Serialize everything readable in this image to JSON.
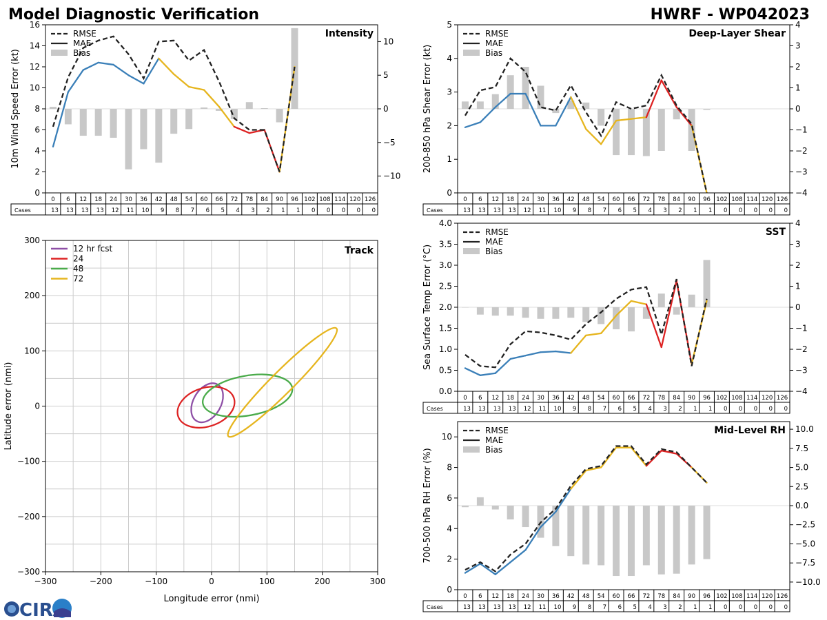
{
  "header": {
    "title_left": "Model Diagnostic Verification",
    "title_right": "HWRF - WP042023"
  },
  "logo": {
    "text": "CIRA"
  },
  "hours": [
    "0",
    "6",
    "12",
    "18",
    "24",
    "30",
    "36",
    "42",
    "48",
    "54",
    "60",
    "66",
    "72",
    "78",
    "84",
    "90",
    "96",
    "102",
    "108",
    "114",
    "120",
    "126"
  ],
  "cases": [
    "13",
    "13",
    "13",
    "13",
    "12",
    "11",
    "10",
    "9",
    "8",
    "7",
    "6",
    "5",
    "4",
    "3",
    "2",
    "1",
    "1",
    "0",
    "0",
    "0",
    "0",
    "0"
  ],
  "cases_label": "Cases",
  "legend_stats": [
    "RMSE",
    "MAE",
    "Bias"
  ],
  "colors": {
    "blue": "#3a7fb8",
    "yellow": "#e6b51e",
    "red": "#dd2222",
    "rmse": "#222222",
    "bias": "#c8c8c8",
    "grid": "#cccccc",
    "purple": "#8e4fa6",
    "green": "#4aab4a"
  },
  "chart_data": [
    {
      "id": "intensity",
      "type": "line",
      "title": "Intensity",
      "ylabel": "10m Wind Speed Error (kt)",
      "ylim": [
        0,
        16
      ],
      "yticks": [
        "0",
        "2",
        "4",
        "6",
        "8",
        "10",
        "12",
        "14",
        "16"
      ],
      "y2lim": [
        -12.5,
        12.5
      ],
      "y2ticks": [
        "−10",
        "−5",
        "0",
        "5",
        "10"
      ],
      "rmse": [
        6.3,
        11.0,
        13.8,
        14.5,
        14.9,
        13.2,
        10.9,
        14.4,
        14.5,
        12.6,
        13.6,
        10.6,
        7.1,
        6.0,
        6.0,
        2.0,
        12.0
      ],
      "mae": [
        4.4,
        9.6,
        11.7,
        12.4,
        12.2,
        11.2,
        10.4,
        12.8,
        11.3,
        10.1,
        9.8,
        8.2,
        6.3,
        5.7,
        6.0,
        2.0,
        12.0
      ],
      "bias": [
        0.3,
        -2.3,
        -4.0,
        -4.0,
        -4.3,
        -9.0,
        -6.0,
        -8.0,
        -3.7,
        -3.0,
        0.2,
        -0.3,
        -1.5,
        1.0,
        0.1,
        -2.0,
        12.0
      ]
    },
    {
      "id": "shear",
      "type": "line",
      "title": "Deep-Layer Shear",
      "ylabel": "200-850 hPa Shear Error (kt)",
      "ylim": [
        0,
        5
      ],
      "yticks": [
        "0",
        "1",
        "2",
        "3",
        "4",
        "5"
      ],
      "y2lim": [
        -4,
        4
      ],
      "y2ticks": [
        "−4",
        "−3",
        "−2",
        "−1",
        "0",
        "1",
        "2",
        "3",
        "4"
      ],
      "rmse": [
        2.3,
        3.05,
        3.15,
        4.0,
        3.6,
        2.55,
        2.45,
        3.2,
        2.4,
        1.7,
        2.7,
        2.5,
        2.6,
        3.5,
        2.6,
        2.05,
        0.0
      ],
      "mae": [
        1.95,
        2.1,
        2.55,
        2.95,
        2.95,
        2.0,
        2.0,
        2.85,
        1.9,
        1.45,
        2.15,
        2.2,
        2.25,
        3.35,
        2.55,
        2.0,
        0.0
      ],
      "bias": [
        0.35,
        0.35,
        0.7,
        1.6,
        2.0,
        1.1,
        -0.2,
        0.4,
        0.3,
        -0.8,
        -2.2,
        -2.2,
        -2.25,
        -2.0,
        -0.5,
        -2.0,
        -0.05
      ]
    },
    {
      "id": "sst",
      "type": "line",
      "title": "SST",
      "ylabel": "Sea Surface Temp Error (°C)",
      "ylim": [
        0,
        4
      ],
      "yticks": [
        "0.0",
        "0.5",
        "1.0",
        "1.5",
        "2.0",
        "2.5",
        "3.0",
        "3.5",
        "4.0"
      ],
      "y2lim": [
        -4,
        4
      ],
      "y2ticks": [
        "−4",
        "−3",
        "−2",
        "−1",
        "0",
        "1",
        "2",
        "3",
        "4"
      ],
      "rmse": [
        0.87,
        0.6,
        0.57,
        1.12,
        1.43,
        1.4,
        1.33,
        1.23,
        1.6,
        1.88,
        2.2,
        2.42,
        2.48,
        1.35,
        2.67,
        0.6,
        2.2
      ],
      "mae": [
        0.55,
        0.38,
        0.43,
        0.77,
        0.85,
        0.93,
        0.95,
        0.91,
        1.33,
        1.38,
        1.8,
        2.15,
        2.07,
        1.05,
        2.63,
        0.65,
        2.15
      ],
      "bias": [
        0.0,
        -0.35,
        -0.4,
        -0.4,
        -0.5,
        -0.55,
        -0.55,
        -0.5,
        -0.7,
        -0.8,
        -1.05,
        -1.15,
        -0.55,
        0.65,
        -0.35,
        0.6,
        2.25
      ]
    },
    {
      "id": "rh",
      "type": "line",
      "title": "Mid-Level RH",
      "ylabel": "700-500 hPa RH Error (%)",
      "ylim": [
        0,
        11
      ],
      "yticks": [
        "0",
        "2",
        "4",
        "6",
        "8",
        "10"
      ],
      "y2lim": [
        -11,
        11
      ],
      "y2ticks": [
        "−10.0",
        "−7.5",
        "−5.0",
        "−2.5",
        "0.0",
        "2.5",
        "5.0",
        "7.5",
        "10.0"
      ],
      "rmse": [
        1.3,
        1.8,
        1.2,
        2.3,
        3.0,
        4.4,
        5.3,
        6.8,
        7.9,
        8.1,
        9.4,
        9.4,
        8.2,
        9.2,
        9.0,
        8.0,
        7.0
      ],
      "mae": [
        1.1,
        1.7,
        1.0,
        1.8,
        2.6,
        4.1,
        5.1,
        6.6,
        7.8,
        8.0,
        9.3,
        9.3,
        8.1,
        9.1,
        8.9,
        8.0,
        7.0
      ],
      "bias": [
        -0.2,
        1.1,
        -0.5,
        -1.8,
        -2.8,
        -4.2,
        -5.3,
        -6.6,
        -7.7,
        -7.8,
        -9.2,
        -9.2,
        -7.8,
        -9.0,
        -8.9,
        -7.7,
        -7.0
      ]
    },
    {
      "id": "track",
      "type": "scatter",
      "title": "Track",
      "xlabel": "Longitude error (nmi)",
      "ylabel": "Latitude error (nmi)",
      "xlim": [
        -300,
        300
      ],
      "ylim": [
        -300,
        300
      ],
      "xticks": [
        "−300",
        "−200",
        "−100",
        "0",
        "100",
        "200",
        "300"
      ],
      "yticks": [
        "−300",
        "−200",
        "−100",
        "0",
        "100",
        "200",
        "300"
      ],
      "series": [
        {
          "name": "12 hr fcst",
          "color": "#8e4fa6",
          "cx": -8,
          "cy": 6,
          "rx": 38,
          "ry": 25,
          "angle": 60
        },
        {
          "name": "24",
          "color": "#dd2222",
          "cx": -10,
          "cy": -2,
          "rx": 53,
          "ry": 35,
          "angle": 18
        },
        {
          "name": "48",
          "color": "#4aab4a",
          "cx": 65,
          "cy": 19,
          "rx": 82,
          "ry": 36,
          "angle": 10
        },
        {
          "name": "72",
          "color": "#e6b51e",
          "cx": 128,
          "cy": 43,
          "rx": 138,
          "ry": 20,
          "angle": 45
        }
      ]
    }
  ]
}
